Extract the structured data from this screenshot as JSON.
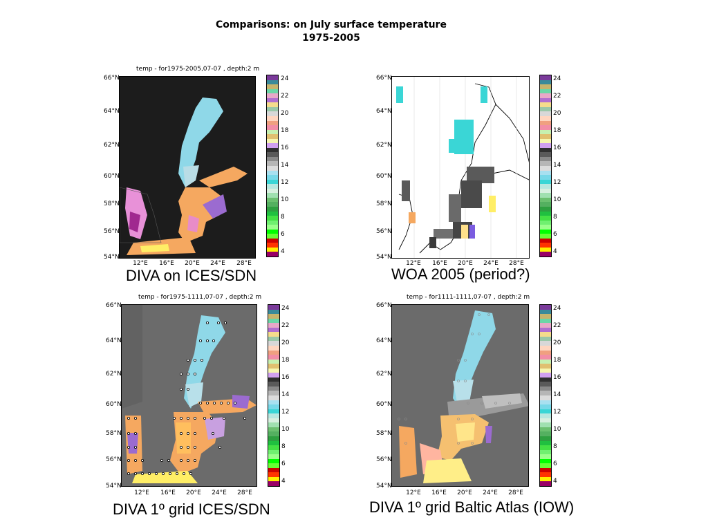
{
  "title": {
    "line1": "Comparisons: on July surface temperature",
    "line2": "1975-2005"
  },
  "lat_labels": [
    "66°N",
    "64°N",
    "62°N",
    "60°N",
    "58°N",
    "56°N",
    "54°N"
  ],
  "lon_labels": [
    "12°E",
    "16°E",
    "20°E",
    "24°E",
    "28°E"
  ],
  "colorbar_ticks": [
    "24",
    "22",
    "20",
    "18",
    "16",
    "14",
    "12",
    "10",
    "8",
    "6",
    "4"
  ],
  "panels": [
    {
      "title": "temp - for1975-2005,07-07 , depth:2 m",
      "caption": "DIVA on ICES/SDN",
      "background": "#1e1e1e"
    },
    {
      "title": "",
      "caption": "WOA 2005 (period?)",
      "background": "#ffffff"
    },
    {
      "title": "temp - for1975-1111,07-07 , depth:2 m",
      "caption": "DIVA 1º grid ICES/SDN",
      "background": "#6b6b6b"
    },
    {
      "title": "temp - for1111-1111,07-07 , depth:2 m",
      "caption": "DIVA 1º grid Baltic Atlas (IOW)",
      "background": "#6b6b6b"
    }
  ],
  "colors": {
    "warm": "#f5a860",
    "cold": "#8fd8e8",
    "purple": "#9b6bd0",
    "yellow": "#ffee66",
    "cyan": "#3ad6d6"
  }
}
